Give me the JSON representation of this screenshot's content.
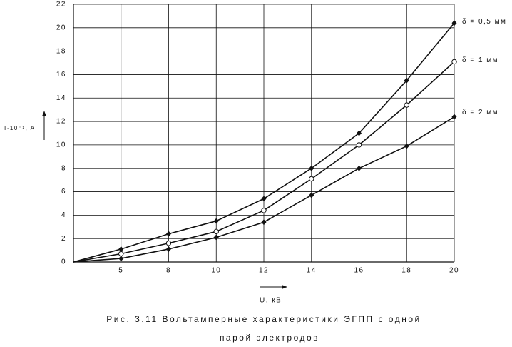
{
  "chart_data": {
    "type": "line",
    "title": [
      "Рис. 3.11 Вольтамперные характеристики ЭГПП с одной",
      "парой электродов"
    ],
    "x_label": "U, кВ",
    "y_label": "I·10⁻¹, A",
    "categories": [
      null,
      "5",
      "8",
      "10",
      "12",
      "14",
      "16",
      "18",
      "20"
    ],
    "series": [
      {
        "name": "δ = 0,5 мм",
        "color": "#111111",
        "marker": "diamond",
        "values": [
          0,
          1.1,
          2.4,
          3.5,
          5.4,
          8.0,
          11.0,
          15.5,
          20.4
        ]
      },
      {
        "name": "δ = 1 мм",
        "color": "#111111",
        "marker": "circle",
        "values": [
          0,
          0.7,
          1.6,
          2.6,
          4.4,
          7.1,
          10.0,
          13.4,
          17.1
        ]
      },
      {
        "name": "δ = 2 мм",
        "color": "#111111",
        "marker": "diamond",
        "values": [
          0,
          0.3,
          1.1,
          2.1,
          3.4,
          5.7,
          8.0,
          9.9,
          12.4
        ]
      }
    ],
    "ylim": [
      0,
      22
    ],
    "yticks": [
      0,
      2,
      4,
      6,
      8,
      10,
      12,
      14,
      16,
      18,
      20,
      22
    ],
    "grid": true
  }
}
